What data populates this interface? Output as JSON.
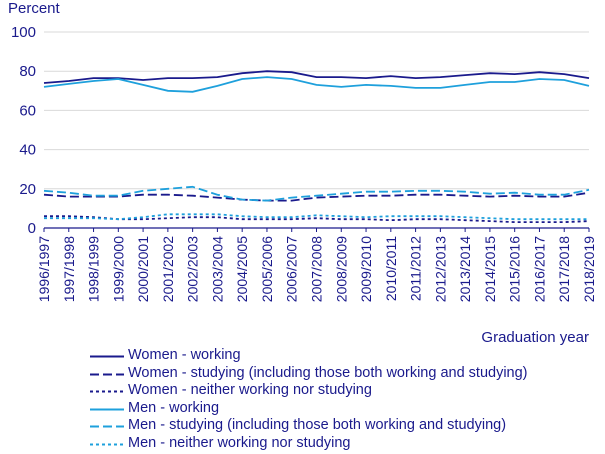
{
  "chart_data": {
    "type": "line",
    "ylabel": "Percent",
    "xlabel": "Graduation year",
    "ylim": [
      0,
      100
    ],
    "yticks": [
      0,
      20,
      40,
      60,
      80,
      100
    ],
    "grid": true,
    "legend_position": "bottom",
    "categories": [
      "1996/1997",
      "1997/1998",
      "1998/1999",
      "1999/2000",
      "2000/2001",
      "2001/2002",
      "2002/2003",
      "2003/2004",
      "2004/2005",
      "2005/2006",
      "2006/2007",
      "2007/2008",
      "2008/2009",
      "2009/2010",
      "2010/2011",
      "2011/2012",
      "2012/2013",
      "2013/2014",
      "2014/2015",
      "2015/2016",
      "2016/2017",
      "2017/2018",
      "2018/2019"
    ],
    "series": [
      {
        "name": "Women - working",
        "color": "#1a1a8c",
        "dash": "solid",
        "values": [
          74,
          75,
          76.5,
          76.5,
          75.5,
          76.5,
          76.5,
          77,
          79,
          80,
          79.5,
          77,
          77,
          76.5,
          77.5,
          76.5,
          77,
          78,
          79,
          78.5,
          79.5,
          78.5,
          76.5
        ]
      },
      {
        "name": "Women - studying (including those both working and studying)",
        "color": "#1a1a8c",
        "dash": "long",
        "values": [
          17,
          16,
          16,
          16,
          17,
          17,
          16.5,
          15.5,
          14.5,
          14,
          14,
          15.5,
          16,
          16.5,
          16.5,
          17,
          17,
          16.5,
          16,
          16.5,
          16,
          16,
          18
        ]
      },
      {
        "name": "Women - neither working nor studying",
        "color": "#1a1a8c",
        "dash": "short",
        "values": [
          6,
          6,
          5.5,
          4.5,
          4.5,
          5,
          5.5,
          5.5,
          4.5,
          4.5,
          4.5,
          5,
          4.5,
          4.5,
          4,
          4.5,
          4.5,
          4,
          3.5,
          3,
          3,
          3,
          3.5
        ]
      },
      {
        "name": "Men - working",
        "color": "#1ea0dc",
        "dash": "solid",
        "values": [
          72,
          73.5,
          75,
          76,
          73,
          70,
          69.5,
          72.5,
          76,
          77,
          76,
          73,
          72,
          73,
          72.5,
          71.5,
          71.5,
          73,
          74.5,
          74.5,
          76,
          75.5,
          72.5
        ]
      },
      {
        "name": "Men - studying (including those both working and studying)",
        "color": "#1ea0dc",
        "dash": "long",
        "values": [
          19,
          18,
          16.5,
          16.5,
          19,
          20,
          21,
          17,
          14.5,
          14,
          15.5,
          16.5,
          17.5,
          18.5,
          18.5,
          19,
          19,
          18.5,
          17.5,
          18,
          17,
          17,
          19.5
        ]
      },
      {
        "name": "Men - neither working nor studying",
        "color": "#1ea0dc",
        "dash": "short",
        "values": [
          5,
          5,
          5,
          4.5,
          5.5,
          7,
          7,
          7,
          6,
          5.5,
          5.5,
          6.5,
          6,
          5.5,
          6,
          6,
          6,
          5.5,
          5,
          4.5,
          4.5,
          4.5,
          4.5
        ]
      }
    ]
  }
}
